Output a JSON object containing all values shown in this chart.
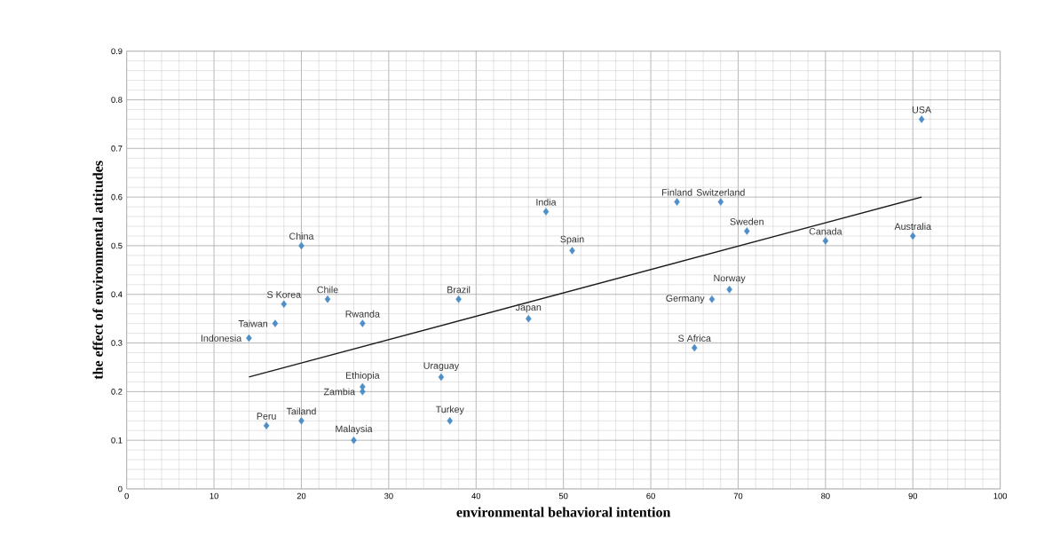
{
  "chart_data": {
    "type": "scatter",
    "xlabel": "environmental behavioral intention",
    "ylabel": "the effect of environmental attitudes",
    "xlim": [
      0,
      100
    ],
    "xticks": [
      0,
      10,
      20,
      30,
      40,
      50,
      60,
      70,
      80,
      90,
      100
    ],
    "ylim": [
      0,
      0.9
    ],
    "yticks": [
      {
        "value": 0,
        "label": "0"
      },
      0.1,
      0.2,
      0.3,
      0.4,
      0.5,
      0.6,
      0.7,
      0.8,
      0.9
    ],
    "grid": true,
    "marker": "diamond",
    "series": [
      {
        "color": "#4f8fc8",
        "x": [
          91,
          90,
          80,
          71,
          68,
          63,
          69,
          67,
          65,
          48,
          51,
          46,
          38,
          36,
          37,
          20,
          23,
          18,
          17,
          14,
          27,
          27,
          27,
          20,
          16,
          26
        ],
        "values": [
          0.76,
          0.52,
          0.51,
          0.53,
          0.59,
          0.59,
          0.41,
          0.39,
          0.29,
          0.57,
          0.49,
          0.35,
          0.39,
          0.23,
          0.14,
          0.5,
          0.39,
          0.38,
          0.34,
          0.31,
          0.34,
          0.21,
          0.2,
          0.14,
          0.13,
          0.1
        ]
      },
      {
        "type": "line",
        "color": "#1a1a1a",
        "marker": "none",
        "line_style": "solid",
        "x": [
          14,
          91
        ],
        "values": [
          0.23,
          0.6
        ]
      }
    ],
    "annotations": [
      {
        "text": "USA",
        "x": 91,
        "y": 0.76
      },
      {
        "text": "Australia",
        "x": 90,
        "y": 0.52
      },
      {
        "text": "Canada",
        "x": 80,
        "y": 0.51
      },
      {
        "text": "Sweden",
        "x": 71,
        "y": 0.53
      },
      {
        "text": "Switzerland",
        "x": 68,
        "y": 0.59
      },
      {
        "text": "Finland",
        "x": 63,
        "y": 0.59
      },
      {
        "text": "Norway",
        "x": 69,
        "y": 0.41
      },
      {
        "text": "Germany",
        "x": 67,
        "y": 0.39
      },
      {
        "text": "S Africa",
        "x": 65,
        "y": 0.29
      },
      {
        "text": "India",
        "x": 48,
        "y": 0.57
      },
      {
        "text": "Spain",
        "x": 51,
        "y": 0.49
      },
      {
        "text": "Japan",
        "x": 46,
        "y": 0.35
      },
      {
        "text": "Brazil",
        "x": 38,
        "y": 0.39
      },
      {
        "text": "Uraguay",
        "x": 36,
        "y": 0.23
      },
      {
        "text": "Turkey",
        "x": 37,
        "y": 0.14
      },
      {
        "text": "China",
        "x": 20,
        "y": 0.5
      },
      {
        "text": "Chile",
        "x": 23,
        "y": 0.39
      },
      {
        "text": "S Korea",
        "x": 18,
        "y": 0.38
      },
      {
        "text": "Taiwan",
        "x": 17,
        "y": 0.34
      },
      {
        "text": "Indonesia",
        "x": 14,
        "y": 0.31
      },
      {
        "text": "Rwanda",
        "x": 27,
        "y": 0.34
      },
      {
        "text": "Ethiopia",
        "x": 27,
        "y": 0.21
      },
      {
        "text": "Zambia",
        "x": 27,
        "y": 0.2
      },
      {
        "text": "Tailand",
        "x": 20,
        "y": 0.14
      },
      {
        "text": "Peru",
        "x": 16,
        "y": 0.13
      },
      {
        "text": "Malaysia",
        "x": 26,
        "y": 0.1
      }
    ]
  }
}
